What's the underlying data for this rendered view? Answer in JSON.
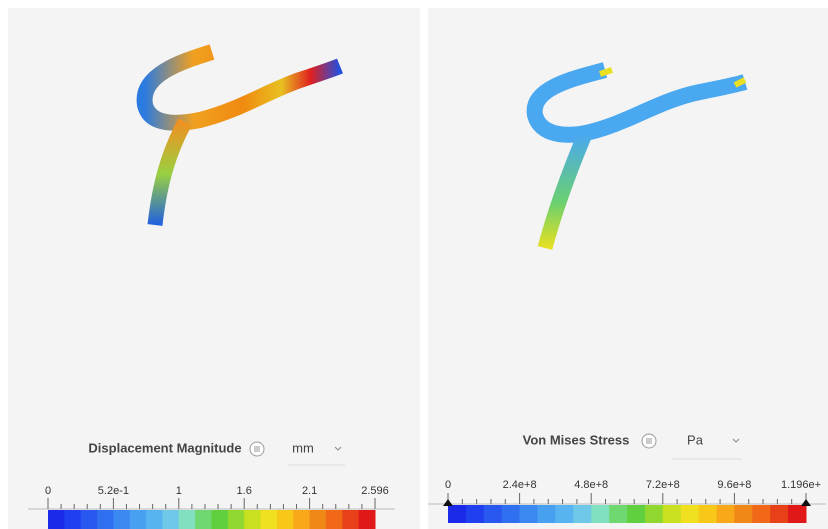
{
  "panels": [
    {
      "legend": {
        "title": "Displacement Magnitude",
        "unit": "mm",
        "ticks": [
          "0",
          "5.2e-1",
          "1",
          "1.6",
          "2.1",
          "2.596"
        ]
      }
    },
    {
      "legend": {
        "title": "Von Mises Stress",
        "unit": "Pa",
        "ticks": [
          "0",
          "2.4e+8",
          "4.8e+8",
          "7.2e+8",
          "9.6e+8",
          "1.196e+"
        ]
      }
    }
  ]
}
